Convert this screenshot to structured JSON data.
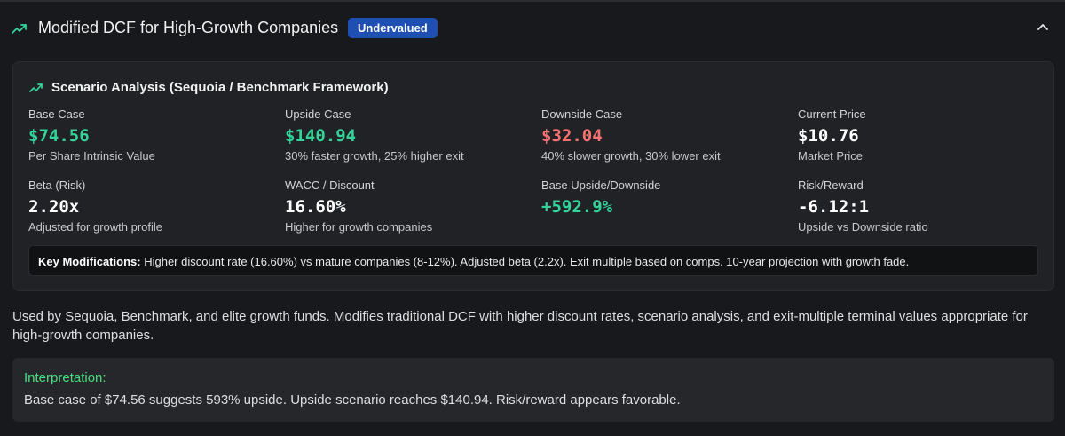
{
  "header": {
    "title": "Modified DCF for High-Growth Companies",
    "badge": "Undervalued",
    "icon": "trending-up-icon",
    "collapse_icon": "chevron-up-icon"
  },
  "scenario": {
    "title": "Scenario Analysis (Sequoia / Benchmark Framework)",
    "metrics": [
      {
        "label": "Base Case",
        "value": "$74.56",
        "sub": "Per Share Intrinsic Value",
        "color": "#34d399"
      },
      {
        "label": "Upside Case",
        "value": "$140.94",
        "sub": "30% faster growth, 25% higher exit",
        "color": "#34d399"
      },
      {
        "label": "Downside Case",
        "value": "$32.04",
        "sub": "40% slower growth, 30% lower exit",
        "color": "#f87171"
      },
      {
        "label": "Current Price",
        "value": "$10.76",
        "sub": "Market Price",
        "color": "#ffffff"
      },
      {
        "label": "Beta (Risk)",
        "value": "2.20x",
        "sub": "Adjusted for growth profile",
        "color": "#ffffff"
      },
      {
        "label": "WACC / Discount",
        "value": "16.60%",
        "sub": "Higher for growth companies",
        "color": "#ffffff"
      },
      {
        "label": "Base Upside/Downside",
        "value": "+592.9%",
        "sub": "",
        "color": "#34d399"
      },
      {
        "label": "Risk/Reward",
        "value": "-6.12:1",
        "sub": "Upside vs Downside ratio",
        "color": "#ffffff"
      }
    ],
    "key_label": "Key Modifications:",
    "key_text": "Higher discount rate (16.60%) vs mature companies (8-12%). Adjusted beta (2.2x). Exit multiple based on comps. 10-year projection with growth fade."
  },
  "description": "Used by Sequoia, Benchmark, and elite growth funds. Modifies traditional DCF with higher discount rates, scenario analysis, and exit-multiple terminal values appropriate for high-growth companies.",
  "interpretation": {
    "title": "Interpretation:",
    "text": "Base case of $74.56 suggests 593% upside. Upside scenario reaches $140.94. Risk/reward appears favorable."
  },
  "colors": {
    "positive": "#34d399",
    "negative": "#f87171",
    "badge": "#1f4fb3",
    "interpretation_title": "#4ade80"
  }
}
